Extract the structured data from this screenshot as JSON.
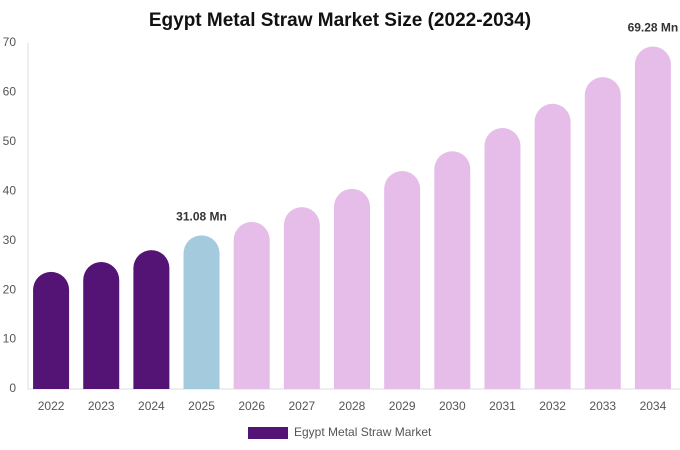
{
  "chart_data": {
    "type": "bar",
    "title": "Egypt Metal Straw Market Size (2022-2034)",
    "categories": [
      "2022",
      "2023",
      "2024",
      "2025",
      "2026",
      "2027",
      "2028",
      "2029",
      "2030",
      "2031",
      "2032",
      "2033",
      "2034"
    ],
    "series": [
      {
        "name": "Egypt Metal Straw Market",
        "color": "#541475",
        "values": [
          23.7,
          25.7,
          28.1,
          31.08,
          33.8,
          36.8,
          40.5,
          44.1,
          48.1,
          52.8,
          57.7,
          63.1,
          69.28
        ],
        "value_labels": [
          null,
          null,
          null,
          "31.08 Mn",
          null,
          null,
          null,
          null,
          null,
          null,
          null,
          null,
          "69.28 Mn"
        ],
        "bar_colors": [
          "#541475",
          "#541475",
          "#541475",
          "#a4cade",
          "#e6bde9",
          "#e6bde9",
          "#e6bde9",
          "#e6bde9",
          "#e6bde9",
          "#e6bde9",
          "#e6bde9",
          "#e6bde9",
          "#e6bde9"
        ]
      }
    ],
    "ylim": [
      0,
      70
    ],
    "yticks": [
      0,
      10,
      20,
      30,
      40,
      50,
      60,
      70
    ],
    "grid": false
  }
}
